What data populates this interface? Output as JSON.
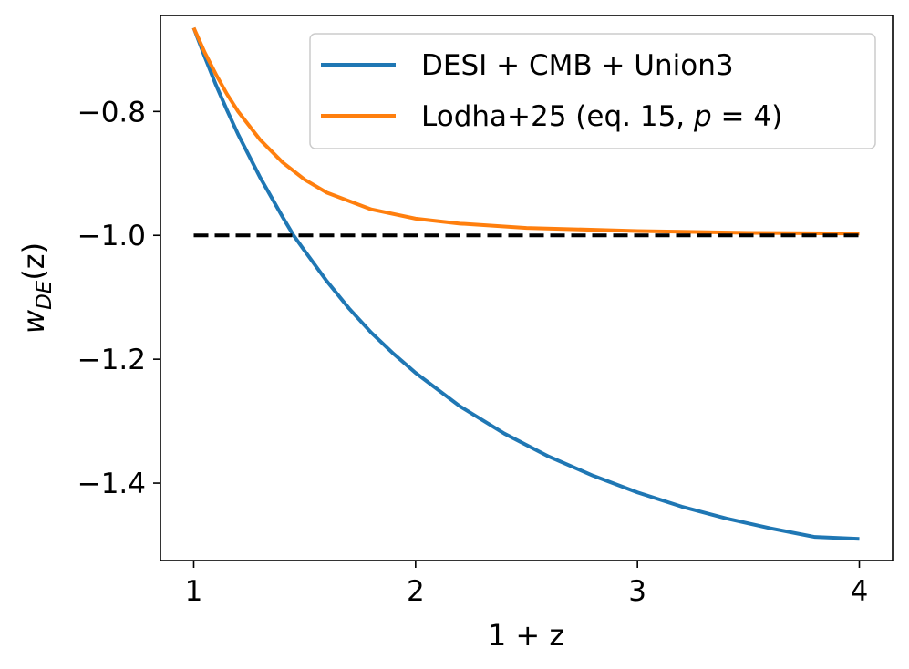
{
  "chart_data": {
    "type": "line",
    "xlabel": "1 + z",
    "ylabel": {
      "base": "w",
      "subscript": "DE",
      "suffix": "(z)"
    },
    "xlim": [
      0.85,
      4.15
    ],
    "ylim": [
      -1.525,
      -0.645
    ],
    "xticks": [
      1,
      2,
      3,
      4
    ],
    "yticks": [
      -0.8,
      -1.0,
      -1.2,
      -1.4
    ],
    "xtick_labels": [
      "1",
      "2",
      "3",
      "4"
    ],
    "ytick_labels": [
      "−0.8",
      "−1.0",
      "−1.2",
      "−1.4"
    ],
    "grid": false,
    "legend": {
      "placement": "upper-right"
    },
    "series": [
      {
        "name": "DESI + CMB + Union3",
        "color": "#1f77b4",
        "style": "solid",
        "x": [
          1.0,
          1.05,
          1.1,
          1.15,
          1.2,
          1.3,
          1.4,
          1.45,
          1.5,
          1.6,
          1.7,
          1.8,
          1.9,
          2.0,
          2.2,
          2.4,
          2.6,
          2.8,
          3.0,
          3.2,
          3.4,
          3.6,
          3.8,
          4.0
        ],
        "y": [
          -0.665,
          -0.712,
          -0.757,
          -0.798,
          -0.837,
          -0.907,
          -0.97,
          -1.0,
          -1.025,
          -1.074,
          -1.118,
          -1.157,
          -1.191,
          -1.222,
          -1.276,
          -1.32,
          -1.357,
          -1.388,
          -1.415,
          -1.438,
          -1.457,
          -1.473,
          -1.487,
          -1.49
        ]
      },
      {
        "name": "Lodha+25 (eq. 15, p = 4)",
        "color": "#ff7f0e",
        "style": "solid",
        "x": [
          1.0,
          1.05,
          1.1,
          1.15,
          1.2,
          1.3,
          1.4,
          1.5,
          1.6,
          1.8,
          2.0,
          2.2,
          2.5,
          3.0,
          3.5,
          4.0
        ],
        "y": [
          -0.665,
          -0.705,
          -0.74,
          -0.772,
          -0.8,
          -0.846,
          -0.882,
          -0.91,
          -0.931,
          -0.958,
          -0.973,
          -0.981,
          -0.988,
          -0.993,
          -0.996,
          -0.997
        ]
      },
      {
        "name": "",
        "color": "#000000",
        "style": "dashed",
        "x": [
          1.0,
          4.0
        ],
        "y": [
          -1.0,
          -1.0
        ]
      }
    ]
  }
}
